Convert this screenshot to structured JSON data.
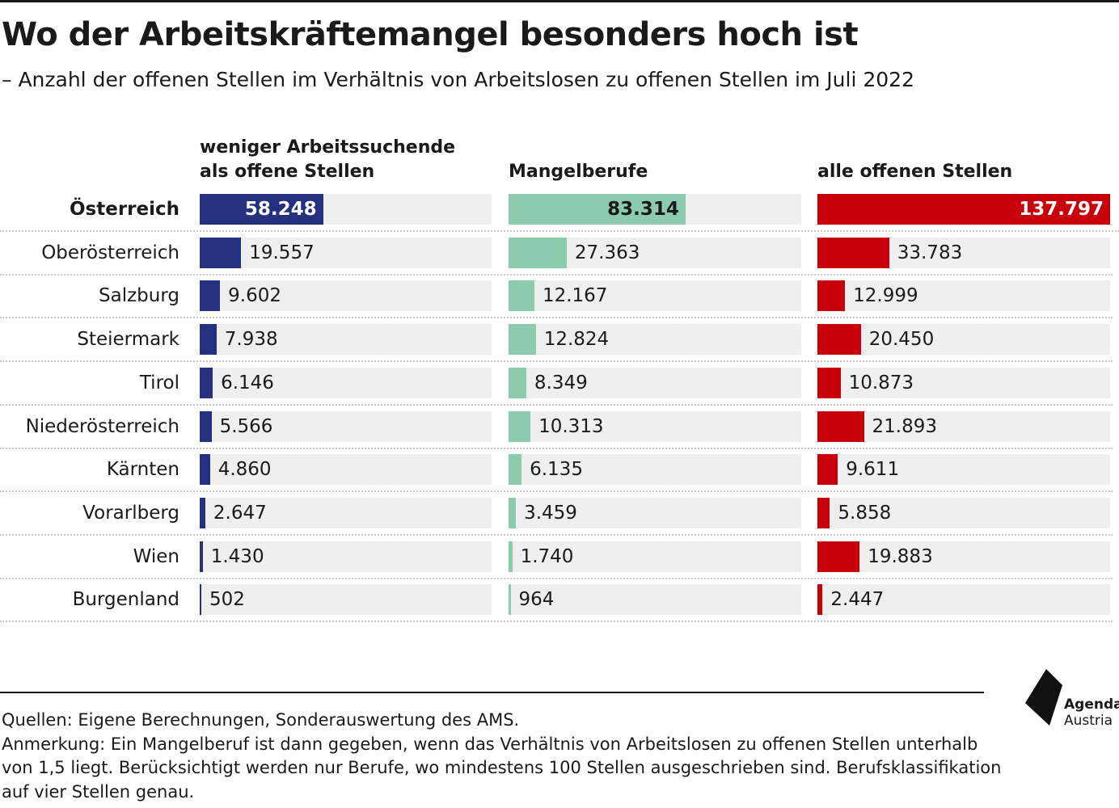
{
  "header": {
    "title": "Wo der Arbeitskräftemangel besonders hoch ist",
    "subtitle": "– Anzahl der offenen Stellen im Verhältnis von Arbeitslosen zu offenen Stellen im Juli 2022"
  },
  "chart_data": {
    "type": "bar",
    "title": "Wo der Arbeitskräftemangel besonders hoch ist",
    "subtitle": "– Anzahl der offenen Stellen im Verhältnis von Arbeitslosen zu offenen Stellen im Juli 2022",
    "categories": [
      "Österreich",
      "Oberösterreich",
      "Salzburg",
      "Steiermark",
      "Tirol",
      "Niederösterreich",
      "Kärnten",
      "Vorarlberg",
      "Wien",
      "Burgenland"
    ],
    "series": [
      {
        "name": "weniger Arbeitssuchende\nals offene Stellen",
        "color": "#25307f",
        "values": [
          58248,
          19557,
          9602,
          7938,
          6146,
          5566,
          4860,
          2647,
          1430,
          502
        ],
        "labels": [
          "58.248",
          "19.557",
          "9.602",
          "7.938",
          "6.146",
          "5.566",
          "4.860",
          "2.647",
          "1.430",
          "502"
        ]
      },
      {
        "name": "Mangelberufe",
        "color": "#8ccbad",
        "values": [
          83314,
          27363,
          12167,
          12824,
          8349,
          10313,
          6135,
          3459,
          1740,
          964
        ],
        "labels": [
          "83.314",
          "27.363",
          "12.167",
          "12.824",
          "8.349",
          "10.313",
          "6.135",
          "3.459",
          "1.740",
          "964"
        ]
      },
      {
        "name": "alle offenen Stellen",
        "color": "#c8000a",
        "values": [
          137797,
          33783,
          12999,
          20450,
          10873,
          21893,
          9611,
          5858,
          19883,
          2447
        ],
        "labels": [
          "137.797",
          "33.783",
          "12.999",
          "20.450",
          "10.873",
          "21.893",
          "9.611",
          "5.858",
          "19.883",
          "2.447"
        ]
      }
    ],
    "xlim": [
      0,
      137797
    ],
    "total_row": "Österreich",
    "grid": false,
    "legend": "column headers above each panel"
  },
  "footer": {
    "sources": "Quellen: Eigene Berechnungen, Sonderauswertung des AMS.",
    "note": "Anmerkung: Ein Mangelberuf ist dann gegeben, wenn das Verhältnis von Arbeitslosen zu offenen Stellen unterhalb von 1,5 liegt. Berücksichtigt werden nur Berufe, wo mindestens 100 Stellen ausgeschrieben sind. Berufsklassifikation auf vier Stellen genau."
  },
  "logo": {
    "line1": "Agenda",
    "line2": "Austria",
    "icon": "agenda-austria-logo-icon"
  }
}
